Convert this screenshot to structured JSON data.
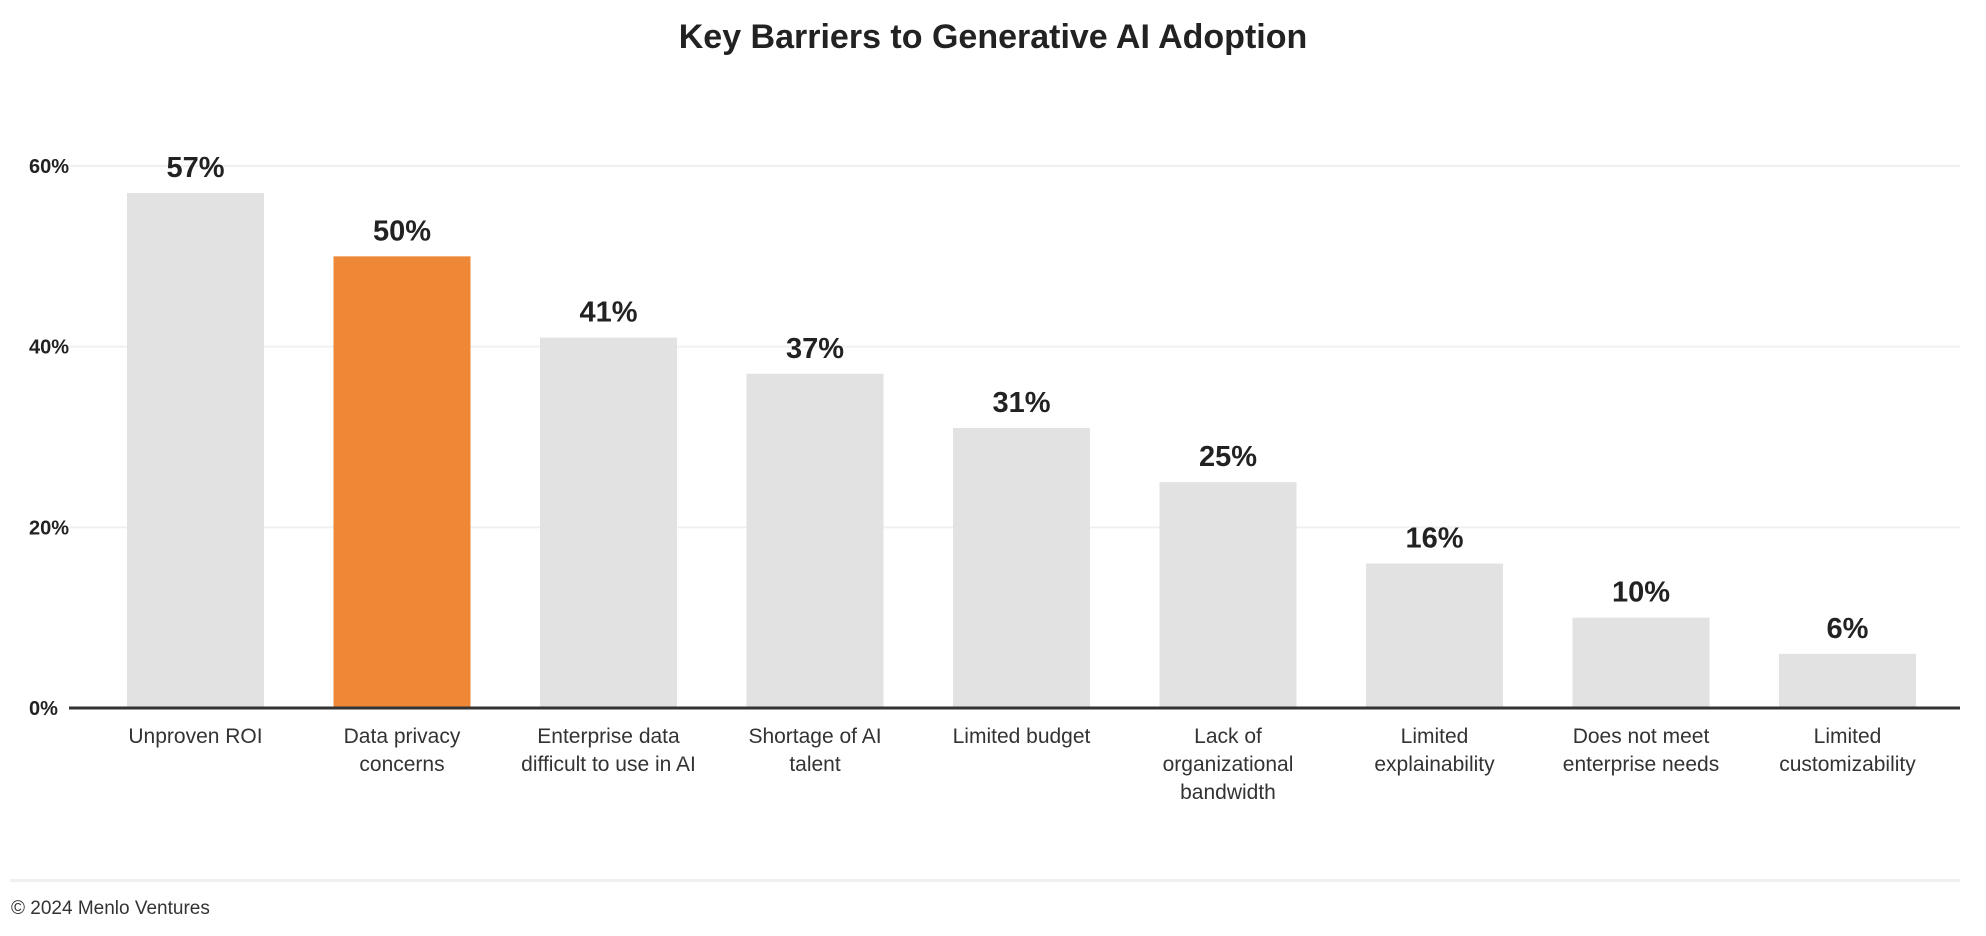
{
  "chart_data": {
    "type": "bar",
    "title": "Key Barriers to Generative AI Adoption",
    "xlabel": "",
    "ylabel": "",
    "ylim": [
      0,
      60
    ],
    "yticks": [
      0,
      20,
      40,
      60
    ],
    "ytick_labels": [
      "0%",
      "20%",
      "40%",
      "60%"
    ],
    "grid": true,
    "categories": [
      [
        "Unproven ROI"
      ],
      [
        "Data privacy",
        "concerns"
      ],
      [
        "Enterprise data",
        "difficult to use in AI"
      ],
      [
        "Shortage of AI",
        "talent"
      ],
      [
        "Limited budget"
      ],
      [
        "Lack of",
        "organizational",
        "bandwidth"
      ],
      [
        "Limited",
        "explainability"
      ],
      [
        "Does not meet",
        "enterprise needs"
      ],
      [
        "Limited",
        "customizability"
      ]
    ],
    "values": [
      57,
      50,
      41,
      37,
      31,
      25,
      16,
      10,
      6
    ],
    "data_labels": [
      "57%",
      "50%",
      "41%",
      "37%",
      "31%",
      "25%",
      "16%",
      "10%",
      "6%"
    ],
    "highlight_index": 1,
    "colors": {
      "bar": "#e2e2e2",
      "highlight": "#ee8836",
      "grid": "#f0f0f0",
      "axis": "#333333",
      "text": "#222222"
    }
  },
  "footer": "© 2024 Menlo Ventures"
}
